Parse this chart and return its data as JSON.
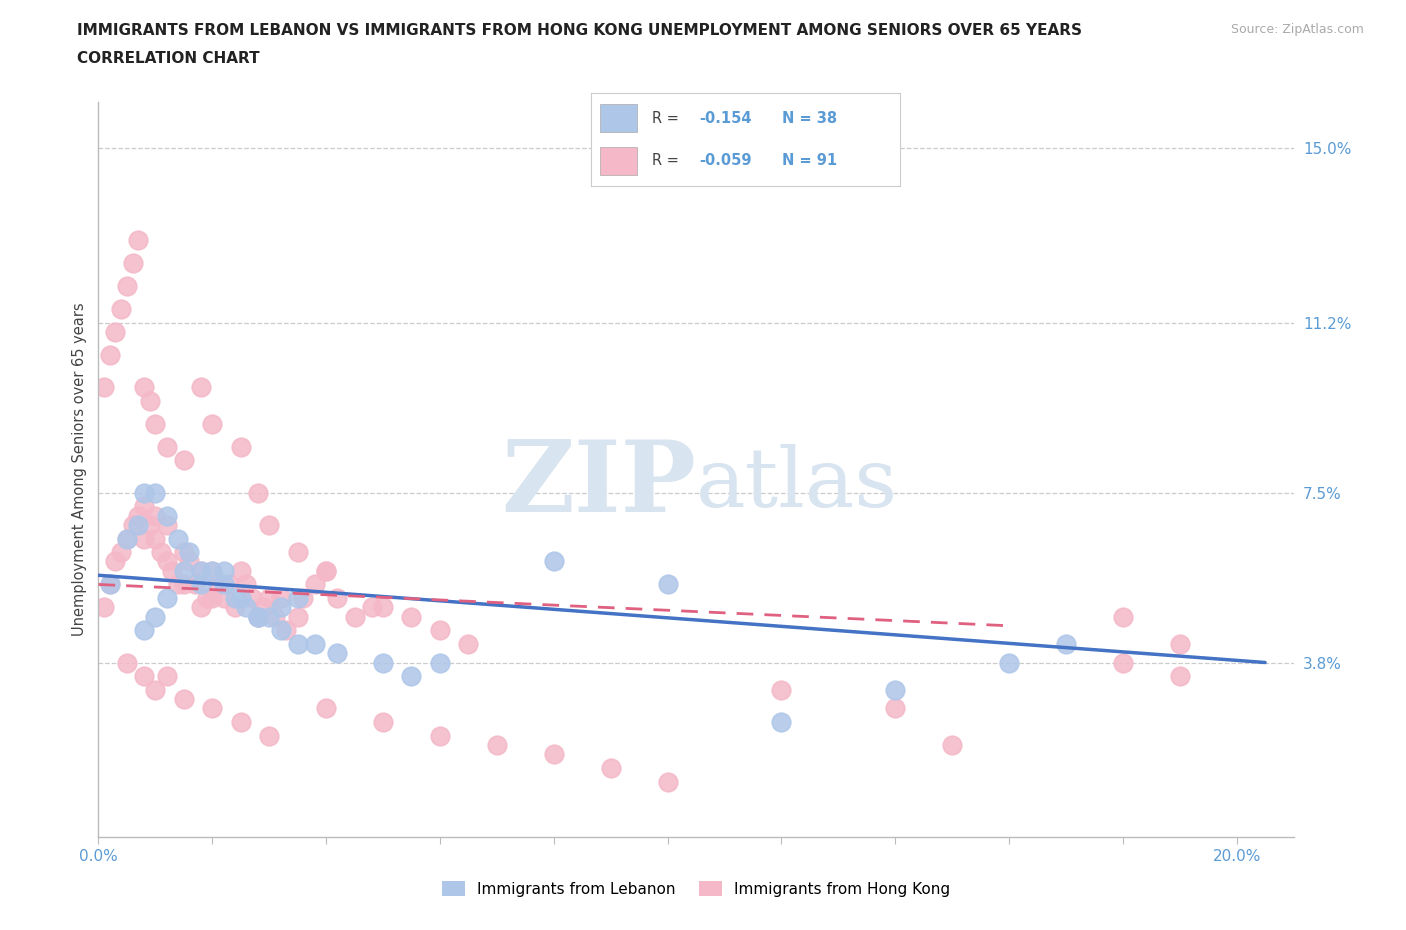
{
  "title_line1": "IMMIGRANTS FROM LEBANON VS IMMIGRANTS FROM HONG KONG UNEMPLOYMENT AMONG SENIORS OVER 65 YEARS",
  "title_line2": "CORRELATION CHART",
  "source_text": "Source: ZipAtlas.com",
  "ylabel": "Unemployment Among Seniors over 65 years",
  "xlim": [
    0.0,
    0.21
  ],
  "ylim": [
    0.0,
    0.16
  ],
  "grid_color": "#cccccc",
  "background_color": "#ffffff",
  "color_lebanon": "#aec6e8",
  "color_hongkong": "#f4b8c8",
  "color_trendline_lebanon": "#4472c4",
  "color_trendline_hongkong": "#e06080",
  "watermark_color": "#d8e4f0",
  "lebanon_x": [
    0.002,
    0.005,
    0.007,
    0.008,
    0.01,
    0.012,
    0.014,
    0.016,
    0.018,
    0.02,
    0.022,
    0.024,
    0.026,
    0.028,
    0.03,
    0.032,
    0.035,
    0.008,
    0.01,
    0.012,
    0.015,
    0.018,
    0.022,
    0.025,
    0.028,
    0.032,
    0.035,
    0.038,
    0.042,
    0.05,
    0.055,
    0.06,
    0.17,
    0.16,
    0.14,
    0.12,
    0.1,
    0.08
  ],
  "lebanon_y": [
    0.055,
    0.065,
    0.068,
    0.075,
    0.075,
    0.07,
    0.065,
    0.062,
    0.058,
    0.058,
    0.055,
    0.052,
    0.05,
    0.048,
    0.048,
    0.05,
    0.052,
    0.045,
    0.048,
    0.052,
    0.058,
    0.055,
    0.058,
    0.052,
    0.048,
    0.045,
    0.042,
    0.042,
    0.04,
    0.038,
    0.035,
    0.038,
    0.042,
    0.038,
    0.032,
    0.025,
    0.055,
    0.06
  ],
  "hongkong_x": [
    0.001,
    0.002,
    0.003,
    0.004,
    0.005,
    0.006,
    0.007,
    0.008,
    0.008,
    0.009,
    0.01,
    0.01,
    0.011,
    0.012,
    0.012,
    0.013,
    0.014,
    0.015,
    0.015,
    0.016,
    0.017,
    0.018,
    0.018,
    0.019,
    0.02,
    0.02,
    0.021,
    0.022,
    0.023,
    0.024,
    0.025,
    0.026,
    0.027,
    0.028,
    0.029,
    0.03,
    0.031,
    0.032,
    0.033,
    0.035,
    0.036,
    0.038,
    0.04,
    0.042,
    0.045,
    0.048,
    0.05,
    0.055,
    0.06,
    0.065,
    0.001,
    0.002,
    0.003,
    0.004,
    0.005,
    0.006,
    0.007,
    0.008,
    0.009,
    0.01,
    0.012,
    0.015,
    0.018,
    0.02,
    0.025,
    0.028,
    0.03,
    0.035,
    0.04,
    0.005,
    0.008,
    0.01,
    0.012,
    0.015,
    0.02,
    0.025,
    0.03,
    0.04,
    0.05,
    0.06,
    0.07,
    0.08,
    0.09,
    0.1,
    0.12,
    0.14,
    0.15,
    0.18,
    0.18,
    0.19,
    0.19
  ],
  "hongkong_y": [
    0.05,
    0.055,
    0.06,
    0.062,
    0.065,
    0.068,
    0.07,
    0.072,
    0.065,
    0.068,
    0.07,
    0.065,
    0.062,
    0.068,
    0.06,
    0.058,
    0.055,
    0.062,
    0.055,
    0.06,
    0.055,
    0.058,
    0.05,
    0.052,
    0.058,
    0.052,
    0.055,
    0.052,
    0.055,
    0.05,
    0.058,
    0.055,
    0.052,
    0.048,
    0.05,
    0.052,
    0.048,
    0.052,
    0.045,
    0.048,
    0.052,
    0.055,
    0.058,
    0.052,
    0.048,
    0.05,
    0.05,
    0.048,
    0.045,
    0.042,
    0.098,
    0.105,
    0.11,
    0.115,
    0.12,
    0.125,
    0.13,
    0.098,
    0.095,
    0.09,
    0.085,
    0.082,
    0.098,
    0.09,
    0.085,
    0.075,
    0.068,
    0.062,
    0.058,
    0.038,
    0.035,
    0.032,
    0.035,
    0.03,
    0.028,
    0.025,
    0.022,
    0.028,
    0.025,
    0.022,
    0.02,
    0.018,
    0.015,
    0.012,
    0.032,
    0.028,
    0.02,
    0.048,
    0.038,
    0.042,
    0.035
  ],
  "trendline_leb_x0": 0.0,
  "trendline_leb_x1": 0.205,
  "trendline_leb_y0": 0.057,
  "trendline_leb_y1": 0.038,
  "trendline_hk_x0": 0.0,
  "trendline_hk_x1": 0.16,
  "trendline_hk_y0": 0.055,
  "trendline_hk_y1": 0.046
}
